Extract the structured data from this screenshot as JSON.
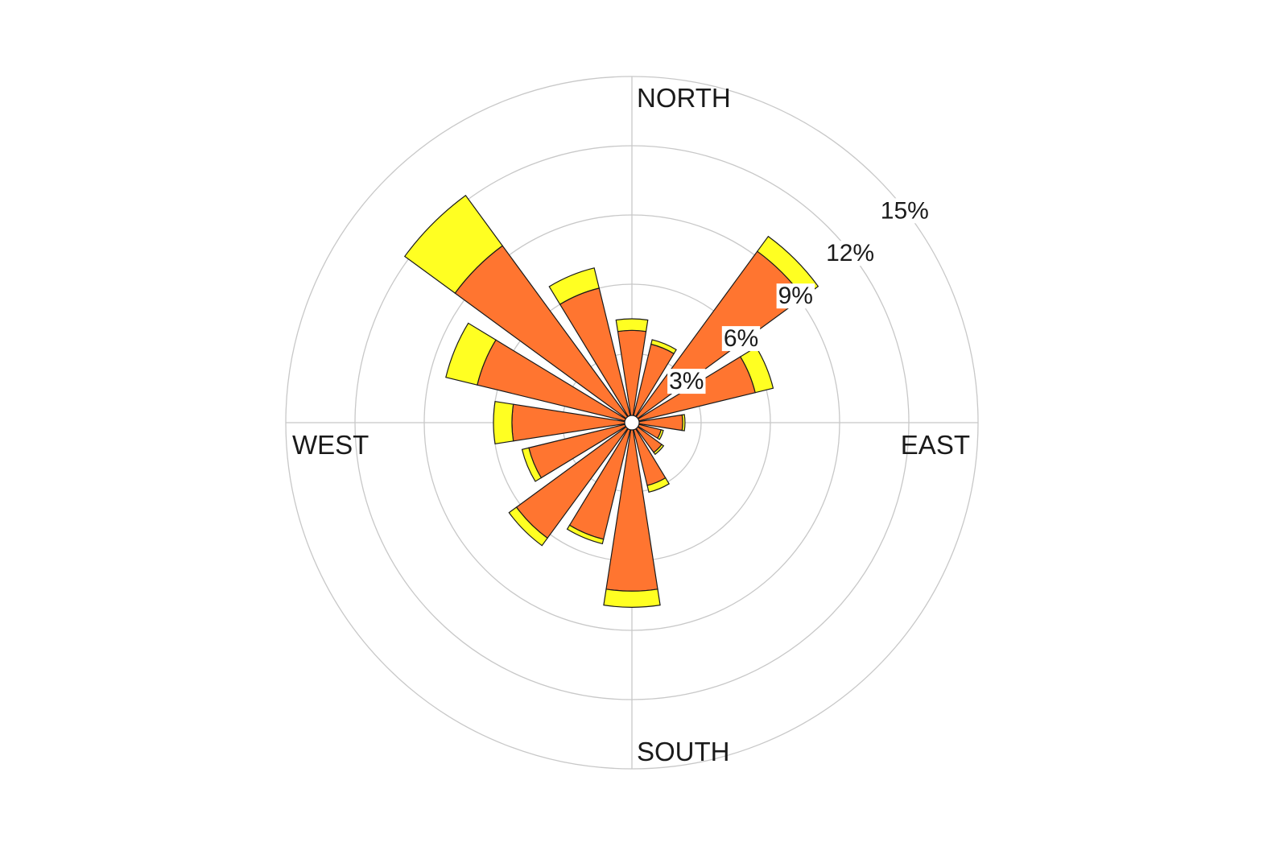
{
  "chart_data": {
    "type": "wind-rose",
    "title": "",
    "directions": [
      "N",
      "NNE",
      "NE",
      "ENE",
      "E",
      "ESE",
      "SE",
      "SSE",
      "S",
      "SSW",
      "SW",
      "WSW",
      "W",
      "WNW",
      "NW",
      "NNW"
    ],
    "angles_deg": [
      0,
      22.5,
      45,
      67.5,
      90,
      112.5,
      135,
      157.5,
      180,
      202.5,
      225,
      247.5,
      270,
      292.5,
      315,
      337.5
    ],
    "series": [
      {
        "color": "#ff7530",
        "values": [
          4.0,
          3.5,
          9.2,
          5.5,
          2.2,
          1.3,
          1.6,
          2.8,
          7.3,
          5.2,
          6.2,
          4.6,
          5.2,
          6.9,
          9.5,
          6.0
        ]
      },
      {
        "color": "#ffff22",
        "values": [
          0.5,
          0.2,
          0.8,
          0.8,
          0.1,
          0.1,
          0.1,
          0.3,
          0.7,
          0.2,
          0.4,
          0.3,
          0.8,
          1.4,
          2.7,
          0.9
        ]
      }
    ],
    "series_stacking": "stacked",
    "radial_axis": {
      "max": 15,
      "ticks": [
        3,
        6,
        9,
        12,
        15
      ],
      "tick_labels": [
        "3%",
        "6%",
        "9%",
        "12%",
        "15%"
      ]
    },
    "compass_labels": {
      "north": "NORTH",
      "east": "EAST",
      "south": "SOUTH",
      "west": "WEST"
    },
    "grid": true,
    "legend": "none",
    "colors": {
      "grid": "#c8c8c8",
      "outline": "#1a1a1a"
    }
  }
}
